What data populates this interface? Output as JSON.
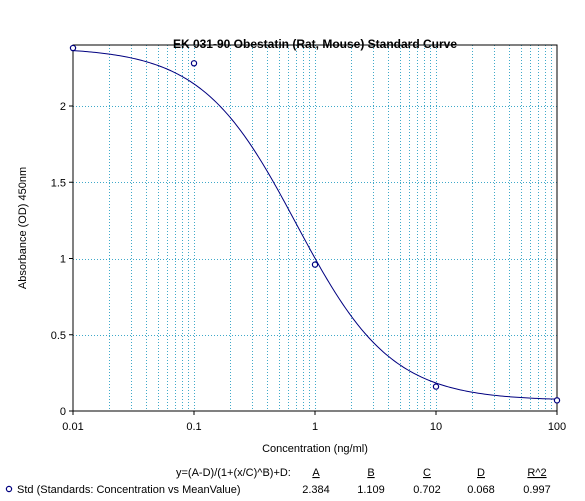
{
  "chart_data": {
    "type": "scatter",
    "title": "EK 031-90 Obestatin (Rat, Mouse) Standard Curve",
    "xlabel": "Concentration (ng/ml)",
    "ylabel": "Absorbance (OD) 450nm",
    "xscale": "log",
    "xlim": [
      0.01,
      100
    ],
    "ylim": [
      0,
      2.4
    ],
    "x_ticks": [
      "0.01",
      "0.1",
      "1",
      "10",
      "100"
    ],
    "y_ticks": [
      "0",
      "0.5",
      "1",
      "1.5",
      "2"
    ],
    "grid": true,
    "series": [
      {
        "name": "Std (Standards: Concentration vs MeanValue)",
        "color": "#000080",
        "marker": "open-circle",
        "x": [
          0.01,
          0.1,
          1,
          10,
          100
        ],
        "y": [
          2.38,
          2.28,
          0.96,
          0.16,
          0.07
        ]
      }
    ],
    "fit": {
      "equation": "y=(A-D)/(1+(x/C)^B)+D:",
      "params": {
        "A": 2.384,
        "B": 1.109,
        "C": 0.702,
        "D": 0.068,
        "R2": 0.997
      },
      "headers": [
        "A",
        "B",
        "C",
        "D",
        "R^2"
      ],
      "values": [
        "2.384",
        "1.109",
        "0.702",
        "0.068",
        "0.997"
      ],
      "color": "#000080"
    }
  }
}
